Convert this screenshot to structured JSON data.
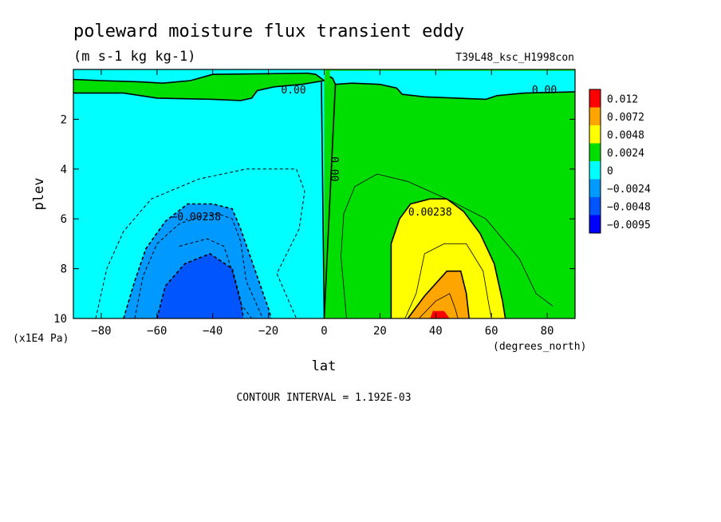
{
  "chart_data": {
    "type": "contour",
    "title": "poleward moisture flux transient eddy",
    "units": "(m s-1 kg kg-1)",
    "experiment": "T39L48_ksc_H1998con",
    "xlabel": "lat",
    "xunits": "(degrees_north)",
    "ylabel": "plev",
    "yunits": "(x1E4 Pa)",
    "xlim": [
      -90,
      90
    ],
    "ylim": [
      10,
      0
    ],
    "x_ticks": [
      -80,
      -60,
      -40,
      -20,
      0,
      20,
      40,
      60,
      80
    ],
    "y_ticks": [
      2,
      4,
      6,
      8,
      10
    ],
    "footer": "CONTOUR INTERVAL = 1.192E-03",
    "colorbar": {
      "labels": [
        "0.012",
        "0.0072",
        "0.0048",
        "0.0024",
        "0",
        "−0.0024",
        "−0.0048",
        "−0.0095"
      ],
      "colors": [
        "#ff0000",
        "#ffa500",
        "#ffff00",
        "#00dd00",
        "#00ffff",
        "#0099ff",
        "#0055ff",
        "#0000ff"
      ]
    },
    "colors": {
      "pos": "#00dd00",
      "neg": "#00ffff",
      "neg2": "#0099ff",
      "neg3": "#0055ff",
      "pos2": "#ffff00",
      "pos3": "#ffa500",
      "pos4": "#ff0000"
    },
    "contour_labels": [
      {
        "text": "0.00",
        "x": -11,
        "y": 0.8
      },
      {
        "text": "0.00",
        "x": 79,
        "y": 0.8
      },
      {
        "text": "0.00",
        "x": 2.5,
        "y": 4
      },
      {
        "text": "−0.00238",
        "x": -46,
        "y": 5.9
      },
      {
        "text": "0.00238",
        "x": 38,
        "y": 5.7
      }
    ],
    "regions": {
      "top_green": [
        [
          -90,
          0.05
        ],
        [
          -90,
          0.95
        ],
        [
          -72,
          0.95
        ],
        [
          -60,
          1.15
        ],
        [
          -40,
          1.2
        ],
        [
          -30,
          1.25
        ],
        [
          -26,
          1.15
        ],
        [
          -24,
          0.85
        ],
        [
          -18,
          0.7
        ],
        [
          -8,
          0.6
        ],
        [
          0,
          0.45
        ],
        [
          0.5,
          0.05
        ]
      ],
      "mid_blue": [
        [
          -90,
          0.05
        ],
        [
          0.5,
          0.05
        ],
        [
          0,
          0.45
        ],
        [
          -3,
          0.2
        ],
        [
          -6,
          0.15
        ],
        [
          -40,
          0.2
        ],
        [
          -48,
          0.45
        ],
        [
          -58,
          0.55
        ],
        [
          -66,
          0.5
        ],
        [
          -80,
          0.45
        ],
        [
          -90,
          0.4
        ]
      ],
      "north_blue": [
        [
          2,
          0.05
        ],
        [
          90,
          0.05
        ],
        [
          90,
          0.9
        ],
        [
          72,
          0.95
        ],
        [
          62,
          1.05
        ],
        [
          58,
          1.2
        ],
        [
          36,
          1.1
        ],
        [
          28,
          1.0
        ],
        [
          26,
          0.75
        ],
        [
          20,
          0.6
        ],
        [
          10,
          0.55
        ],
        [
          4,
          0.6
        ],
        [
          2,
          0.3
        ]
      ],
      "north_green_cap": [
        [
          0.6,
          0.05
        ],
        [
          2,
          0.05
        ],
        [
          2,
          0.3
        ],
        [
          4,
          0.6
        ],
        [
          3,
          0.35
        ]
      ],
      "neg2": [
        [
          -72,
          10
        ],
        [
          -68,
          8.5
        ],
        [
          -64,
          7.2
        ],
        [
          -57,
          6.1
        ],
        [
          -49,
          5.4
        ],
        [
          -40,
          5.4
        ],
        [
          -33,
          5.6
        ],
        [
          -30,
          6.4
        ],
        [
          -25,
          8
        ],
        [
          -20,
          9.6
        ],
        [
          -19,
          10
        ]
      ],
      "neg3": [
        [
          -60,
          10
        ],
        [
          -57,
          8.7
        ],
        [
          -50,
          7.8
        ],
        [
          -41,
          7.4
        ],
        [
          -33,
          8
        ],
        [
          -30,
          9.3
        ],
        [
          -29,
          10
        ]
      ],
      "pos2": [
        [
          24,
          10
        ],
        [
          24,
          7
        ],
        [
          27,
          6
        ],
        [
          31,
          5.4
        ],
        [
          38,
          5.2
        ],
        [
          44,
          5.2
        ],
        [
          50,
          5.7
        ],
        [
          56,
          6.6
        ],
        [
          61,
          7.8
        ],
        [
          64,
          9.3
        ],
        [
          65,
          10
        ]
      ],
      "pos3": [
        [
          30,
          10
        ],
        [
          36,
          9.1
        ],
        [
          44,
          8.1
        ],
        [
          49,
          8.1
        ],
        [
          51,
          9
        ],
        [
          52,
          10
        ]
      ],
      "pos4": [
        [
          38,
          10
        ],
        [
          39,
          9.7
        ],
        [
          43,
          9.7
        ],
        [
          45,
          10
        ]
      ]
    },
    "contour_lines": [
      {
        "style": "solid",
        "width": 1.6,
        "points": [
          [
            -90,
            0.95
          ],
          [
            -72,
            0.95
          ],
          [
            -60,
            1.15
          ],
          [
            -40,
            1.2
          ],
          [
            -30,
            1.25
          ],
          [
            -26,
            1.15
          ],
          [
            -24,
            0.85
          ],
          [
            -18,
            0.7
          ],
          [
            -8,
            0.6
          ],
          [
            0,
            0.45
          ]
        ]
      },
      {
        "style": "solid",
        "width": 1.6,
        "points": [
          [
            4,
            0.6
          ],
          [
            10,
            0.55
          ],
          [
            20,
            0.6
          ],
          [
            26,
            0.75
          ],
          [
            28,
            1.0
          ],
          [
            36,
            1.1
          ],
          [
            58,
            1.2
          ],
          [
            62,
            1.05
          ],
          [
            72,
            0.95
          ],
          [
            90,
            0.9
          ]
        ]
      },
      {
        "style": "solid",
        "width": 1.6,
        "points": [
          [
            0,
            0.45
          ],
          [
            -3,
            0.2
          ],
          [
            -6,
            0.15
          ],
          [
            -40,
            0.2
          ],
          [
            -48,
            0.45
          ],
          [
            -58,
            0.55
          ],
          [
            -66,
            0.5
          ],
          [
            -80,
            0.45
          ],
          [
            -90,
            0.4
          ]
        ]
      },
      {
        "style": "solid",
        "width": 1.6,
        "points": [
          [
            2,
            0.3
          ],
          [
            3,
            0.35
          ],
          [
            4,
            0.6
          ],
          [
            0,
            10
          ]
        ]
      },
      {
        "style": "solid",
        "width": 1.6,
        "points": [
          [
            -1,
            0.5
          ],
          [
            0,
            10
          ]
        ]
      },
      {
        "style": "dash",
        "width": 1.0,
        "points": [
          [
            -82,
            10
          ],
          [
            -78,
            8
          ],
          [
            -72,
            6.5
          ],
          [
            -62,
            5.2
          ],
          [
            -45,
            4.4
          ],
          [
            -28,
            4.0
          ],
          [
            -10,
            4.0
          ],
          [
            -7,
            4.9
          ],
          [
            -9,
            6.4
          ],
          [
            -17,
            8.2
          ],
          [
            -10,
            10
          ]
        ]
      },
      {
        "style": "dash",
        "width": 1.0,
        "points": [
          [
            -68,
            10
          ],
          [
            -65,
            8.3
          ],
          [
            -60,
            7.0
          ],
          [
            -52,
            6.2
          ],
          [
            -44,
            5.9
          ],
          [
            -38,
            5.8
          ],
          [
            -33,
            6.0
          ],
          [
            -30,
            6.9
          ],
          [
            -28,
            8.5
          ],
          [
            -22,
            10
          ]
        ]
      },
      {
        "style": "dash",
        "width": 1.6,
        "points": [
          [
            -72,
            10
          ],
          [
            -68,
            8.5
          ],
          [
            -64,
            7.2
          ],
          [
            -57,
            6.1
          ],
          [
            -49,
            5.4
          ],
          [
            -40,
            5.4
          ],
          [
            -33,
            5.6
          ],
          [
            -30,
            6.4
          ],
          [
            -25,
            8
          ],
          [
            -20,
            9.6
          ],
          [
            -19,
            10
          ]
        ]
      },
      {
        "style": "dash",
        "width": 1.0,
        "points": [
          [
            -52,
            7.1
          ],
          [
            -42,
            6.8
          ],
          [
            -36,
            7.1
          ],
          [
            -33,
            8.1
          ],
          [
            -30,
            9.4
          ],
          [
            -26,
            10
          ]
        ]
      },
      {
        "style": "dash",
        "width": 1.6,
        "points": [
          [
            -60,
            10
          ],
          [
            -57,
            8.7
          ],
          [
            -50,
            7.8
          ],
          [
            -41,
            7.4
          ],
          [
            -33,
            8
          ],
          [
            -30,
            9.3
          ],
          [
            -29,
            10
          ]
        ]
      },
      {
        "style": "solid",
        "width": 0.8,
        "points": [
          [
            8,
            10
          ],
          [
            6,
            7.5
          ],
          [
            7,
            5.8
          ],
          [
            11,
            4.7
          ],
          [
            19,
            4.2
          ],
          [
            30,
            4.5
          ],
          [
            44,
            5.2
          ],
          [
            58,
            6.0
          ],
          [
            70,
            7.6
          ],
          [
            76,
            9.0
          ],
          [
            82,
            9.5
          ]
        ]
      },
      {
        "style": "solid",
        "width": 1.6,
        "points": [
          [
            24,
            10
          ],
          [
            24,
            7
          ],
          [
            27,
            6
          ],
          [
            31,
            5.4
          ],
          [
            38,
            5.2
          ],
          [
            44,
            5.2
          ],
          [
            50,
            5.7
          ],
          [
            56,
            6.6
          ],
          [
            61,
            7.8
          ],
          [
            64,
            9.3
          ],
          [
            65,
            10
          ]
        ]
      },
      {
        "style": "solid",
        "width": 0.8,
        "points": [
          [
            29,
            10
          ],
          [
            33,
            9
          ],
          [
            36,
            7.4
          ],
          [
            43,
            7.0
          ],
          [
            51,
            7.0
          ],
          [
            57,
            8.1
          ],
          [
            59,
            9.4
          ],
          [
            60,
            10
          ]
        ]
      },
      {
        "style": "solid",
        "width": 1.6,
        "points": [
          [
            30,
            10
          ],
          [
            36,
            9.1
          ],
          [
            44,
            8.1
          ],
          [
            49,
            8.1
          ],
          [
            51,
            9
          ],
          [
            52,
            10
          ]
        ]
      },
      {
        "style": "solid",
        "width": 0.8,
        "points": [
          [
            34,
            10
          ],
          [
            40,
            9.3
          ],
          [
            45,
            9.0
          ],
          [
            47,
            9.6
          ],
          [
            48,
            10
          ]
        ]
      }
    ]
  }
}
